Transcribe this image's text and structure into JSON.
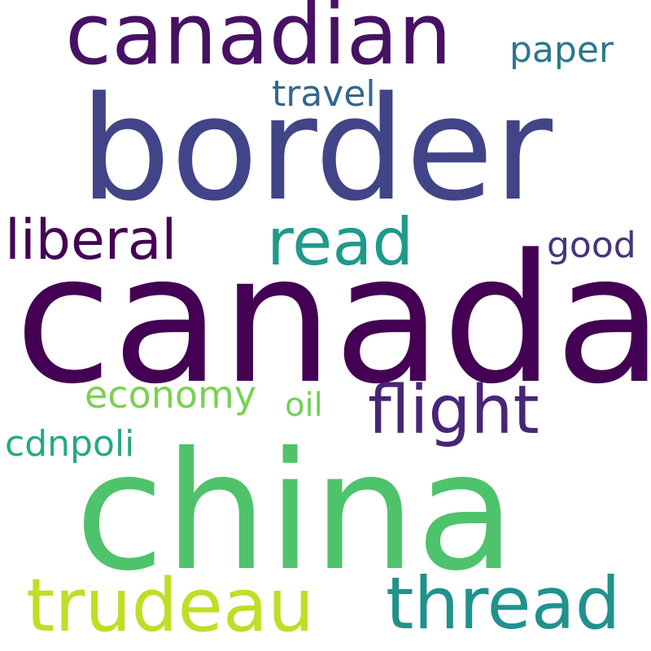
{
  "words": [
    {
      "text": "canada",
      "color": "#440154"
    },
    {
      "text": "border",
      "color": "#414487"
    },
    {
      "text": "china",
      "color": "#4ec36b"
    },
    {
      "text": "canadian",
      "color": "#471164"
    },
    {
      "text": "trudeau",
      "color": "#bddf26"
    },
    {
      "text": "thread",
      "color": "#21918c"
    },
    {
      "text": "flight",
      "color": "#482576"
    },
    {
      "text": "read",
      "color": "#1f9a8a"
    },
    {
      "text": "liberal",
      "color": "#440154"
    },
    {
      "text": "economy",
      "color": "#7ad151"
    },
    {
      "text": "cdnpoli",
      "color": "#23a983"
    },
    {
      "text": "good",
      "color": "#46337e"
    },
    {
      "text": "paper",
      "color": "#2a788e"
    },
    {
      "text": "travel",
      "color": "#31688e"
    },
    {
      "text": "oil",
      "color": "#75d054"
    }
  ]
}
